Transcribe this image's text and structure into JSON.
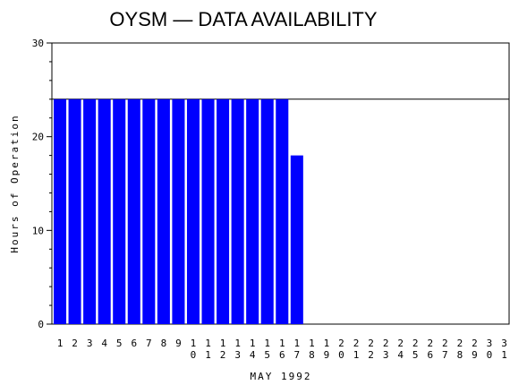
{
  "chart_data": {
    "type": "bar",
    "title": "OYSM — DATA AVAILABILITY",
    "xlabel": "MAY 1992",
    "ylabel": "Hours of Operation",
    "ylim": [
      0,
      30
    ],
    "yticks": [
      0,
      10,
      20,
      30
    ],
    "reference_line": 24,
    "categories": [
      "1",
      "2",
      "3",
      "4",
      "5",
      "6",
      "7",
      "8",
      "9",
      "10",
      "11",
      "12",
      "13",
      "14",
      "15",
      "16",
      "17",
      "18",
      "19",
      "20",
      "21",
      "22",
      "23",
      "24",
      "25",
      "26",
      "27",
      "28",
      "29",
      "30",
      "31"
    ],
    "values": [
      24,
      24,
      24,
      24,
      24,
      24,
      24,
      24,
      24,
      24,
      24,
      24,
      24,
      24,
      24,
      24,
      18,
      0,
      0,
      0,
      0,
      0,
      0,
      0,
      0,
      0,
      0,
      0,
      0,
      0,
      0
    ],
    "bar_color": "#0000ff",
    "grid": false
  }
}
